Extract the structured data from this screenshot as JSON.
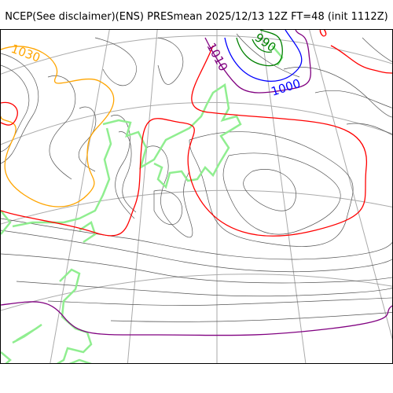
{
  "header": {
    "title": "NCEP(See disclaimer)(ENS) PRESmean 2025/12/13 12Z FT=48 (init 1112Z)"
  },
  "map": {
    "contour_labels": [
      {
        "text": "1030",
        "color": "#ffa500"
      },
      {
        "text": "1010",
        "color": "#800080"
      },
      {
        "text": "990",
        "color": "#008000"
      },
      {
        "text": "1000",
        "color": "#0000ff"
      },
      {
        "text": "0",
        "color": "#ff0000"
      }
    ],
    "colors": {
      "coast": "#90ee90",
      "grid": "#aaaaaa",
      "isobar": "#555555",
      "contour_1030": "#ffa500",
      "contour_1020": "#ff0000",
      "contour_1010": "#800080",
      "contour_1000": "#0000ff",
      "contour_990": "#008000"
    }
  }
}
